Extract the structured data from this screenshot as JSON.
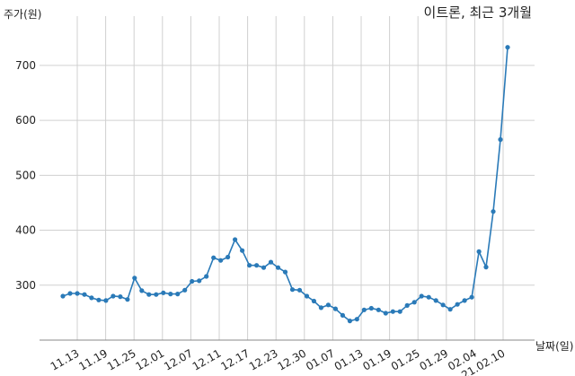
{
  "chart_data": {
    "type": "line",
    "title": "이트론, 최근 3개월",
    "ylabel": "주가(원)",
    "xlabel": "날짜(일)",
    "ylim": [
      200,
      770
    ],
    "yticks": [
      300,
      400,
      500,
      600,
      700
    ],
    "grid": true,
    "color": "#2a7ab8",
    "xticks": [
      "11.13",
      "11.19",
      "11.25",
      "12.01",
      "12.07",
      "12.11",
      "12.17",
      "12.23",
      "12.30",
      "01.07",
      "01.13",
      "01.19",
      "01.25",
      "01.29",
      "02.04",
      "21.02.10"
    ],
    "series": [
      {
        "values": [
          280,
          285,
          285,
          283,
          277,
          273,
          272,
          280,
          279,
          274,
          313,
          290,
          283,
          283,
          286,
          284,
          284,
          291,
          307,
          308,
          316,
          350,
          345,
          351,
          383,
          363,
          336,
          336,
          332,
          342,
          332,
          324,
          292,
          291,
          280,
          271,
          259,
          264,
          257,
          245,
          235,
          238,
          255,
          258,
          255,
          249,
          252,
          252,
          263,
          269,
          280,
          278,
          272,
          264,
          256,
          265,
          272,
          278,
          361,
          333,
          434,
          565,
          733
        ]
      }
    ]
  }
}
